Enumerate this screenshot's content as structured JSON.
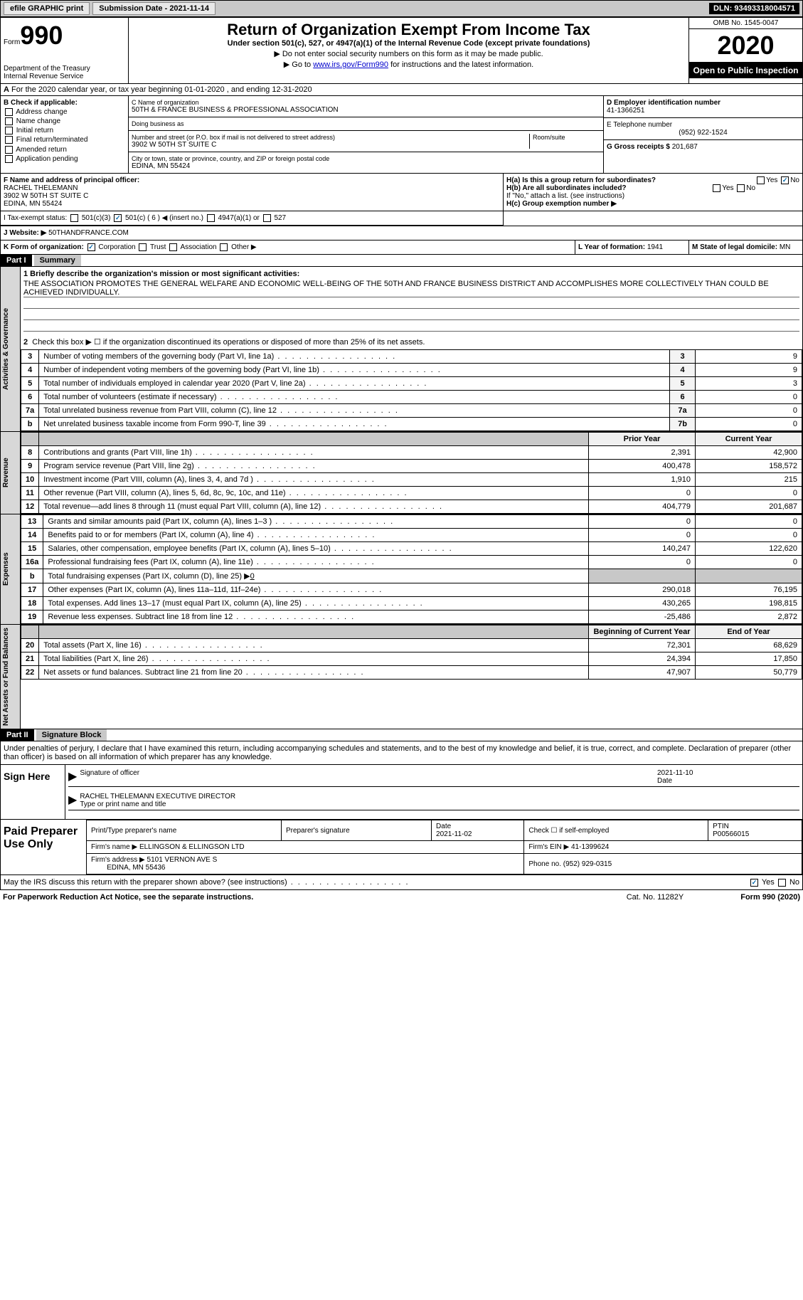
{
  "topbar": {
    "efile": "efile GRAPHIC print",
    "submission": "Submission Date - 2021-11-14",
    "dln": "DLN: 93493318004571"
  },
  "header": {
    "form_word": "Form",
    "form_num": "990",
    "dept": "Department of the Treasury\nInternal Revenue Service",
    "title": "Return of Organization Exempt From Income Tax",
    "sub": "Under section 501(c), 527, or 4947(a)(1) of the Internal Revenue Code (except private foundations)",
    "note1": "▶ Do not enter social security numbers on this form as it may be made public.",
    "note2_pre": "▶ Go to ",
    "note2_link": "www.irs.gov/Form990",
    "note2_post": " for instructions and the latest information.",
    "omb": "OMB No. 1545-0047",
    "year": "2020",
    "inspect": "Open to Public Inspection"
  },
  "taxyear": "For the 2020 calendar year, or tax year beginning 01-01-2020   , and ending 12-31-2020",
  "boxB": {
    "title": "B Check if applicable:",
    "items": [
      "Address change",
      "Name change",
      "Initial return",
      "Final return/terminated",
      "Amended return",
      "Application pending"
    ]
  },
  "boxC": {
    "name_lbl": "C Name of organization",
    "name": "50TH & FRANCE BUSINESS & PROFESSIONAL ASSOCIATION",
    "dba_lbl": "Doing business as",
    "dba": "",
    "addr_lbl": "Number and street (or P.O. box if mail is not delivered to street address)",
    "room_lbl": "Room/suite",
    "addr": "3902 W 50TH ST SUITE C",
    "city_lbl": "City or town, state or province, country, and ZIP or foreign postal code",
    "city": "EDINA, MN  55424"
  },
  "boxD": {
    "lbl": "D Employer identification number",
    "val": "41-1366251"
  },
  "boxE": {
    "lbl": "E Telephone number",
    "val": "(952) 922-1524"
  },
  "boxG": {
    "lbl": "G Gross receipts $",
    "val": "201,687"
  },
  "boxF": {
    "lbl": "F Name and address of principal officer:",
    "name": "RACHEL THELEMANN",
    "addr1": "3902 W 50TH ST SUITE C",
    "addr2": "EDINA, MN  55424"
  },
  "boxH": {
    "a_lbl": "H(a) Is this a group return for subordinates?",
    "a_yes": "Yes",
    "a_no": "No",
    "b_lbl": "H(b) Are all subordinates included?",
    "b_yes": "Yes",
    "b_no": "No",
    "b_note": "If \"No,\" attach a list. (see instructions)",
    "c_lbl": "H(c) Group exemption number ▶"
  },
  "boxI": {
    "lbl": "I   Tax-exempt status:",
    "c3": "501(c)(3)",
    "c": "501(c) ( 6 ) ◀ (insert no.)",
    "a1": "4947(a)(1) or",
    "s527": "527"
  },
  "boxJ": {
    "lbl": "J   Website: ▶",
    "val": "50THANDFRANCE.COM"
  },
  "boxK": {
    "lbl": "K Form of organization:",
    "corp": "Corporation",
    "trust": "Trust",
    "assoc": "Association",
    "other": "Other ▶"
  },
  "boxL": {
    "lbl": "L Year of formation:",
    "val": "1941"
  },
  "boxM": {
    "lbl": "M State of legal domicile:",
    "val": "MN"
  },
  "part1": {
    "hdr": "Part I",
    "title": "Summary"
  },
  "mission": {
    "lbl": "1   Briefly describe the organization's mission or most significant activities:",
    "text": "THE ASSOCIATION PROMOTES THE GENERAL WELFARE AND ECONOMIC WELL-BEING OF THE 50TH AND FRANCE BUSINESS DISTRICT AND ACCOMPLISHES MORE COLLECTIVELY THAN COULD BE ACHIEVED INDIVIDUALLY."
  },
  "line2": "Check this box ▶ ☐  if the organization discontinued its operations or disposed of more than 25% of its net assets.",
  "gov_rows": [
    {
      "n": "3",
      "desc": "Number of voting members of the governing body (Part VI, line 1a)",
      "box": "3",
      "val": "9"
    },
    {
      "n": "4",
      "desc": "Number of independent voting members of the governing body (Part VI, line 1b)",
      "box": "4",
      "val": "9"
    },
    {
      "n": "5",
      "desc": "Total number of individuals employed in calendar year 2020 (Part V, line 2a)",
      "box": "5",
      "val": "3"
    },
    {
      "n": "6",
      "desc": "Total number of volunteers (estimate if necessary)",
      "box": "6",
      "val": "0"
    },
    {
      "n": "7a",
      "desc": "Total unrelated business revenue from Part VIII, column (C), line 12",
      "box": "7a",
      "val": "0"
    },
    {
      "n": "b",
      "desc": "Net unrelated business taxable income from Form 990-T, line 39",
      "box": "7b",
      "val": "0"
    }
  ],
  "rev_hdr": {
    "prior": "Prior Year",
    "curr": "Current Year"
  },
  "rev_rows": [
    {
      "n": "8",
      "desc": "Contributions and grants (Part VIII, line 1h)",
      "p": "2,391",
      "c": "42,900"
    },
    {
      "n": "9",
      "desc": "Program service revenue (Part VIII, line 2g)",
      "p": "400,478",
      "c": "158,572"
    },
    {
      "n": "10",
      "desc": "Investment income (Part VIII, column (A), lines 3, 4, and 7d )",
      "p": "1,910",
      "c": "215"
    },
    {
      "n": "11",
      "desc": "Other revenue (Part VIII, column (A), lines 5, 6d, 8c, 9c, 10c, and 11e)",
      "p": "0",
      "c": "0"
    },
    {
      "n": "12",
      "desc": "Total revenue—add lines 8 through 11 (must equal Part VIII, column (A), line 12)",
      "p": "404,779",
      "c": "201,687"
    }
  ],
  "exp_rows": [
    {
      "n": "13",
      "desc": "Grants and similar amounts paid (Part IX, column (A), lines 1–3 )",
      "p": "0",
      "c": "0"
    },
    {
      "n": "14",
      "desc": "Benefits paid to or for members (Part IX, column (A), line 4)",
      "p": "0",
      "c": "0"
    },
    {
      "n": "15",
      "desc": "Salaries, other compensation, employee benefits (Part IX, column (A), lines 5–10)",
      "p": "140,247",
      "c": "122,620"
    },
    {
      "n": "16a",
      "desc": "Professional fundraising fees (Part IX, column (A), line 11e)",
      "p": "0",
      "c": "0"
    }
  ],
  "exp_16b": {
    "n": "b",
    "desc": "Total fundraising expenses (Part IX, column (D), line 25) ▶",
    "val": "0"
  },
  "exp_rows2": [
    {
      "n": "17",
      "desc": "Other expenses (Part IX, column (A), lines 11a–11d, 11f–24e)",
      "p": "290,018",
      "c": "76,195"
    },
    {
      "n": "18",
      "desc": "Total expenses. Add lines 13–17 (must equal Part IX, column (A), line 25)",
      "p": "430,265",
      "c": "198,815"
    },
    {
      "n": "19",
      "desc": "Revenue less expenses. Subtract line 18 from line 12",
      "p": "-25,486",
      "c": "2,872"
    }
  ],
  "na_hdr": {
    "prior": "Beginning of Current Year",
    "curr": "End of Year"
  },
  "na_rows": [
    {
      "n": "20",
      "desc": "Total assets (Part X, line 16)",
      "p": "72,301",
      "c": "68,629"
    },
    {
      "n": "21",
      "desc": "Total liabilities (Part X, line 26)",
      "p": "24,394",
      "c": "17,850"
    },
    {
      "n": "22",
      "desc": "Net assets or fund balances. Subtract line 21 from line 20",
      "p": "47,907",
      "c": "50,779"
    }
  ],
  "part2": {
    "hdr": "Part II",
    "title": "Signature Block"
  },
  "sig_text": "Under penalties of perjury, I declare that I have examined this return, including accompanying schedules and statements, and to the best of my knowledge and belief, it is true, correct, and complete. Declaration of preparer (other than officer) is based on all information of which preparer has any knowledge.",
  "sign": {
    "here": "Sign Here",
    "officer_lbl": "Signature of officer",
    "date_lbl": "Date",
    "date": "2021-11-10",
    "name": "RACHEL THELEMANN  EXECUTIVE DIRECTOR",
    "name_lbl": "Type or print name and title"
  },
  "prep": {
    "title": "Paid Preparer Use Only",
    "print_lbl": "Print/Type preparer's name",
    "sig_lbl": "Preparer's signature",
    "date_lbl": "Date",
    "date": "2021-11-02",
    "check_lbl": "Check ☐ if self-employed",
    "ptin_lbl": "PTIN",
    "ptin": "P00566015",
    "firm_lbl": "Firm's name  ▶",
    "firm": "ELLINGSON & ELLINGSON LTD",
    "ein_lbl": "Firm's EIN ▶",
    "ein": "41-1399624",
    "addr_lbl": "Firm's address ▶",
    "addr1": "5101 VERNON AVE S",
    "addr2": "EDINA, MN  55436",
    "phone_lbl": "Phone no.",
    "phone": "(952) 929-0315"
  },
  "discuss": {
    "lbl": "May the IRS discuss this return with the preparer shown above? (see instructions)",
    "yes": "Yes",
    "no": "No"
  },
  "footer": {
    "pra": "For Paperwork Reduction Act Notice, see the separate instructions.",
    "cat": "Cat. No. 11282Y",
    "form": "Form 990 (2020)"
  },
  "vert": {
    "gov": "Activities & Governance",
    "rev": "Revenue",
    "exp": "Expenses",
    "na": "Net Assets or Fund Balances"
  }
}
